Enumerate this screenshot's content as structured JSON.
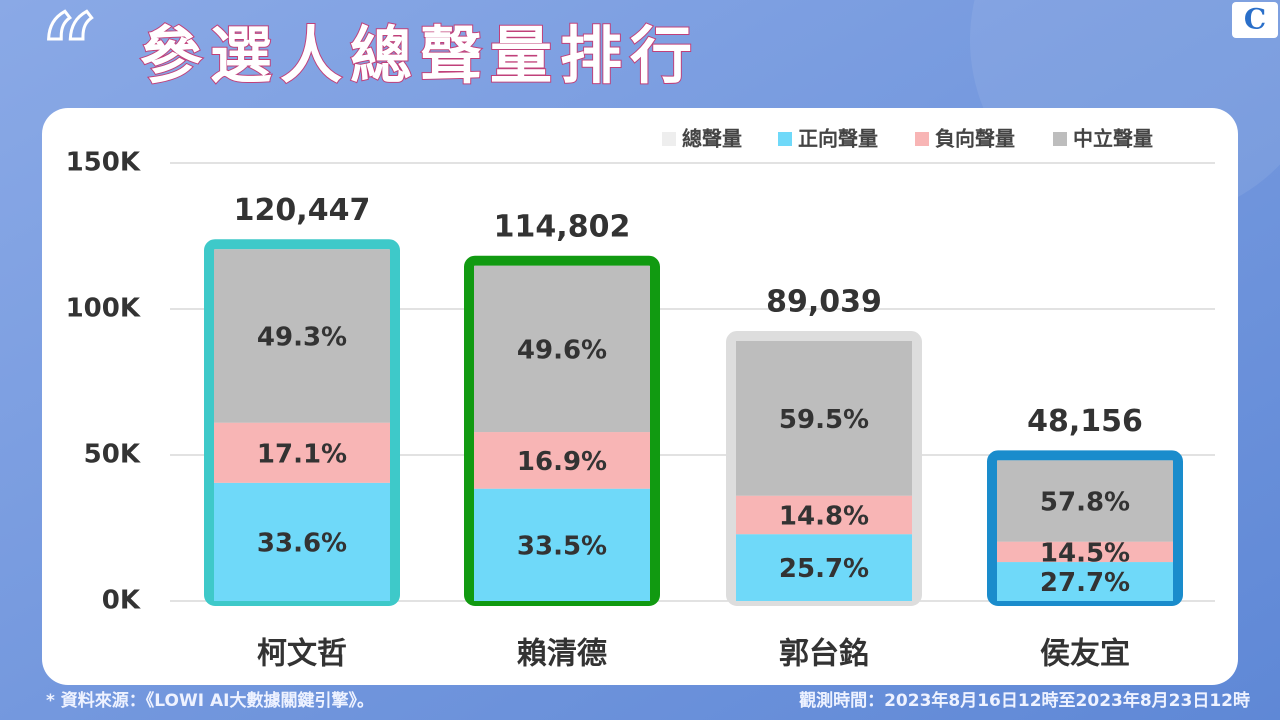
{
  "chart_data": {
    "type": "stacked_bar",
    "title_mark": "“",
    "title": "參選人總聲量排行",
    "categories": [
      "柯文哲",
      "賴清德",
      "郭台銘",
      "侯友宜"
    ],
    "total": {
      "name": "總聲量",
      "color": "#eeeeee",
      "values": [
        120447,
        114802,
        89039,
        48156
      ],
      "value_labels": [
        "120,447",
        "114,802",
        "89,039",
        "48,156"
      ],
      "colors": [
        "#3ec9c9",
        "#119a11",
        "#dddddd",
        "#1a8ccc"
      ]
    },
    "series": [
      {
        "name": "正向聲量",
        "color": "#6fd9f9",
        "values": [
          33.6,
          33.5,
          25.7,
          27.7
        ],
        "value_labels": [
          "33.6%",
          "33.5%",
          "25.7%",
          "27.7%"
        ]
      },
      {
        "name": "負向聲量",
        "color": "#f8b5b5",
        "values": [
          17.1,
          16.9,
          14.8,
          14.5
        ],
        "value_labels": [
          "17.1%",
          "16.9%",
          "14.8%",
          "14.5%"
        ]
      },
      {
        "name": "中立聲量",
        "color": "#bdbdbd",
        "values": [
          49.3,
          49.6,
          59.5,
          57.8
        ],
        "value_labels": [
          "49.3%",
          "49.6%",
          "59.5%",
          "57.8%"
        ]
      }
    ],
    "ylim": [
      0,
      150000
    ],
    "yticks": [
      {
        "value": 0,
        "label": "0K"
      },
      {
        "value": 50000,
        "label": "50K"
      },
      {
        "value": 100000,
        "label": "100K"
      },
      {
        "value": 150000,
        "label": "150K"
      }
    ],
    "grid": true,
    "source": "* 資料來源：《LOWI AI大數據關鍵引擎》。",
    "period": "觀測時間：2023年8月16日12時至2023年8月23日12時"
  }
}
